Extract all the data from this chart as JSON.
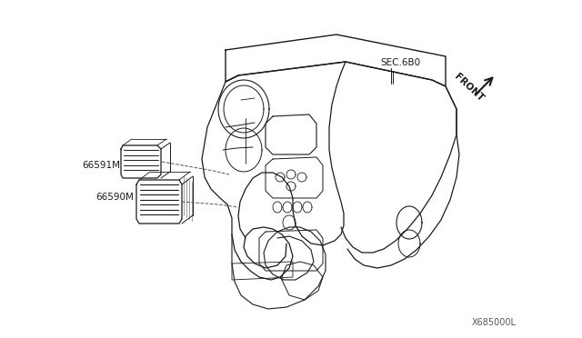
{
  "background_color": "#ffffff",
  "part_labels": [
    "66591M",
    "66590M"
  ],
  "sec_label": "SEC.6B0",
  "front_label": "FRONT",
  "diagram_id": "X685000L",
  "line_color": "#1a1a1a",
  "dash_color": "#555555"
}
